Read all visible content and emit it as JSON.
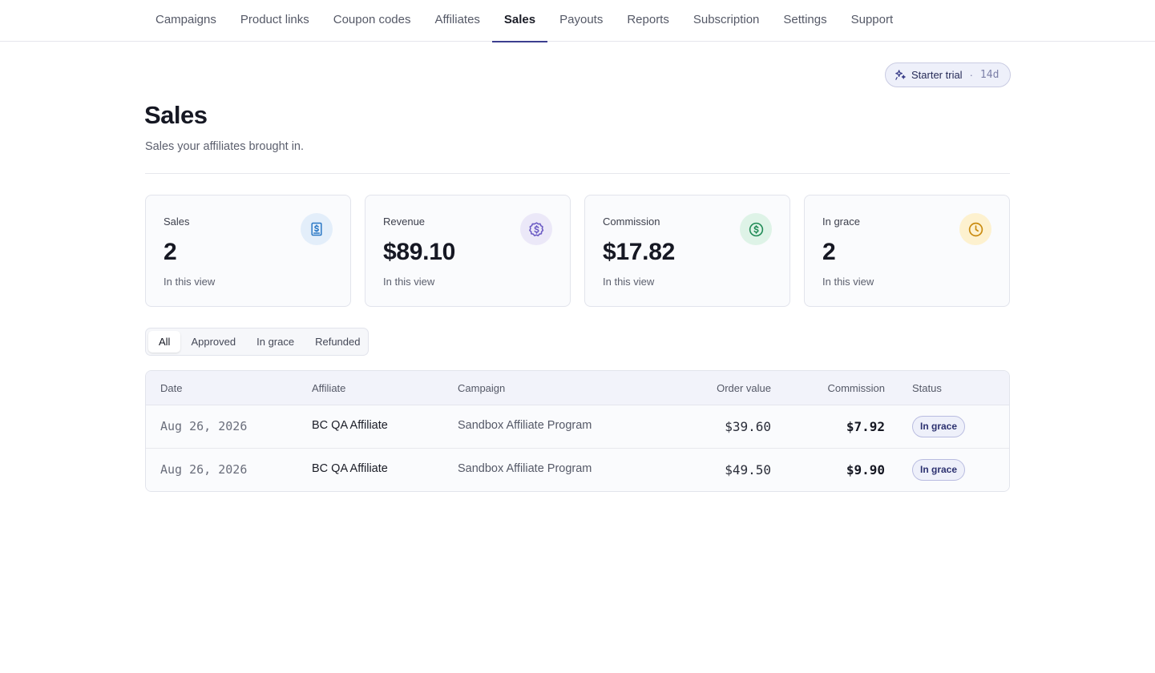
{
  "nav": {
    "tabs": [
      {
        "label": "Campaigns"
      },
      {
        "label": "Product links"
      },
      {
        "label": "Coupon codes"
      },
      {
        "label": "Affiliates"
      },
      {
        "label": "Sales"
      },
      {
        "label": "Payouts"
      },
      {
        "label": "Reports"
      },
      {
        "label": "Subscription"
      },
      {
        "label": "Settings"
      },
      {
        "label": "Support"
      }
    ],
    "active": "Sales"
  },
  "trial": {
    "label": "Starter trial",
    "separator": "·",
    "days": "14d",
    "icon": "sparkles-icon"
  },
  "page": {
    "title": "Sales",
    "subtitle": "Sales your affiliates brought in."
  },
  "stats": [
    {
      "label": "Sales",
      "value": "2",
      "note": "In this view",
      "icon": "receipt-dollar-icon",
      "icon_bg": "#e3eefa",
      "icon_color": "#2b78c5"
    },
    {
      "label": "Revenue",
      "value": "$89.10",
      "note": "In this view",
      "icon": "dollar-badge-icon",
      "icon_bg": "#ebe8f8",
      "icon_color": "#6b5bc4"
    },
    {
      "label": "Commission",
      "value": "$17.82",
      "note": "In this view",
      "icon": "dollar-circle-icon",
      "icon_bg": "#def3e7",
      "icon_color": "#1f8a55"
    },
    {
      "label": "In grace",
      "value": "2",
      "note": "In this view",
      "icon": "clock-icon",
      "icon_bg": "#fdf1cf",
      "icon_color": "#c98a0e"
    }
  ],
  "filters": {
    "options": [
      {
        "label": "All"
      },
      {
        "label": "Approved"
      },
      {
        "label": "In grace"
      },
      {
        "label": "Refunded"
      }
    ],
    "selected": "All"
  },
  "table": {
    "headers": {
      "date": "Date",
      "affiliate": "Affiliate",
      "campaign": "Campaign",
      "order_value": "Order value",
      "commission": "Commission",
      "status": "Status"
    },
    "rows": [
      {
        "date": "Aug 26, 2026",
        "affiliate": "BC QA Affiliate",
        "campaign": "Sandbox Affiliate Program",
        "order_value": "$39.60",
        "commission": "$7.92",
        "status": "In grace"
      },
      {
        "date": "Aug 26, 2026",
        "affiliate": "BC QA Affiliate",
        "campaign": "Sandbox Affiliate Program",
        "order_value": "$49.50",
        "commission": "$9.90",
        "status": "In grace"
      }
    ]
  },
  "colors": {
    "accent": "#3c3f8f",
    "badge_bg": "#eef0fa",
    "badge_border": "#b9bce0"
  }
}
